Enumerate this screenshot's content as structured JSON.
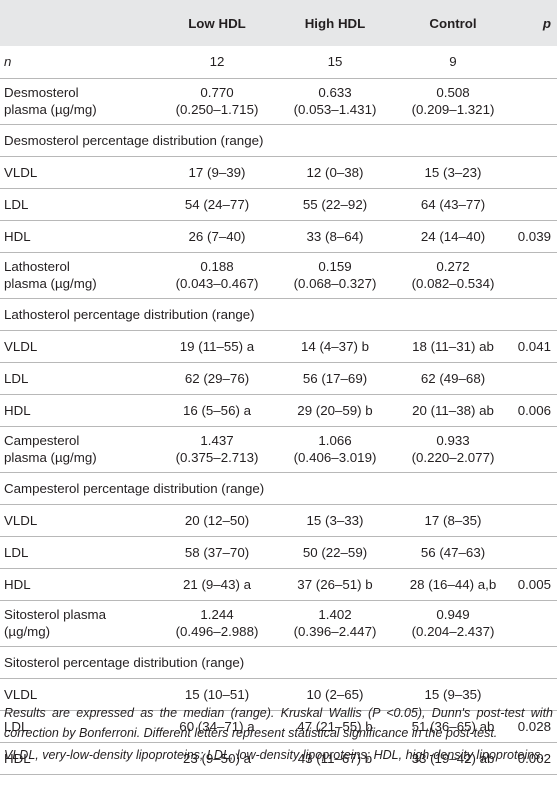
{
  "header": {
    "col0": "",
    "low_hdl": "Low HDL",
    "high_hdl": "High HDL",
    "control": "Control",
    "p": "p"
  },
  "rows": [
    {
      "type": "n",
      "label": "n",
      "low": "12",
      "high": "15",
      "control": "9",
      "p": ""
    },
    {
      "type": "two",
      "label": [
        "Desmosterol",
        "plasma (µg/mg)"
      ],
      "low": [
        "0.770",
        "(0.250–1.715)"
      ],
      "high": [
        "0.633",
        "(0.053–1.431)"
      ],
      "control": [
        "0.508",
        "(0.209–1.321)"
      ],
      "p": ""
    },
    {
      "type": "section",
      "label": "Desmosterol percentage distribution (range)"
    },
    {
      "type": "one",
      "label": "VLDL",
      "low": "17 (9–39)",
      "high": "12 (0–38)",
      "control": "15 (3–23)",
      "p": ""
    },
    {
      "type": "one",
      "label": "LDL",
      "low": "54 (24–77)",
      "high": "55 (22–92)",
      "control": "64 (43–77)",
      "p": ""
    },
    {
      "type": "one",
      "label": "HDL",
      "low": "26 (7–40)",
      "high": "33 (8–64)",
      "control": "24 (14–40)",
      "p": "0.039"
    },
    {
      "type": "two",
      "label": [
        "Lathosterol",
        "plasma (µg/mg)"
      ],
      "low": [
        "0.188",
        "(0.043–0.467)"
      ],
      "high": [
        "0.159",
        "(0.068–0.327)"
      ],
      "control": [
        "0.272",
        "(0.082–0.534)"
      ],
      "p": ""
    },
    {
      "type": "section",
      "label": "Lathosterol percentage distribution (range)"
    },
    {
      "type": "one",
      "label": "VLDL",
      "low": "19 (11–55) a",
      "high": "14 (4–37) b",
      "control": "18 (11–31) ab",
      "p": "0.041"
    },
    {
      "type": "one",
      "label": "LDL",
      "low": "62 (29–76)",
      "high": "56 (17–69)",
      "control": "62 (49–68)",
      "p": ""
    },
    {
      "type": "one",
      "label": "HDL",
      "low": "16 (5–56) a",
      "high": "29 (20–59) b",
      "control": "20 (11–38) ab",
      "p": "0.006"
    },
    {
      "type": "two",
      "label": [
        "Campesterol",
        "plasma (µg/mg)"
      ],
      "low": [
        "1.437",
        "(0.375–2.713)"
      ],
      "high": [
        "1.066",
        "(0.406–3.019)"
      ],
      "control": [
        "0.933",
        "(0.220–2.077)"
      ],
      "p": ""
    },
    {
      "type": "section",
      "label": "Campesterol percentage distribution (range)"
    },
    {
      "type": "one",
      "label": "VLDL",
      "low": "20 (12–50)",
      "high": "15 (3–33)",
      "control": "17 (8–35)",
      "p": ""
    },
    {
      "type": "one",
      "label": "LDL",
      "low": "58 (37–70)",
      "high": "50 (22–59)",
      "control": "56 (47–63)",
      "p": ""
    },
    {
      "type": "one",
      "label": "HDL",
      "low": "21 (9–43) a",
      "high": "37 (26–51) b",
      "control": "28 (16–44) a,b",
      "p": "0.005"
    },
    {
      "type": "two",
      "label": [
        "Sitosterol plasma",
        "(µg/mg)"
      ],
      "low": [
        "1.244",
        "(0.496–2.988)"
      ],
      "high": [
        "1.402",
        "(0.396–2.447)"
      ],
      "control": [
        "0.949",
        "(0.204–2.437)"
      ],
      "p": ""
    },
    {
      "type": "section",
      "label": "Sitosterol percentage distribution (range)"
    },
    {
      "type": "one",
      "label": "VLDL",
      "low": "15 (10–51)",
      "high": "10 (2–65)",
      "control": "15 (9–35)",
      "p": ""
    },
    {
      "type": "one",
      "label": "LDL",
      "low": "60 (34–71) a",
      "high": "47 (21–55) b",
      "control": "51 (36–65) ab",
      "p": "0.028"
    },
    {
      "type": "one",
      "label": "HDL",
      "low": "23 (9–50) a",
      "high": "43 (11–67) b",
      "control": "33 (19–42) ab",
      "p": "0.002"
    }
  ],
  "footnotes": {
    "results": "Results are expressed as the median (range). Kruskal Wallis (P <0.05), Dunn's post-test with correction by Bonferroni. Different letters represent statistical significance in the post-test.",
    "abbreviations": "VLDL, very-low-density lipoproteins; LDL, low-density lipoproteins; HDL, high-density lipoproteins."
  }
}
